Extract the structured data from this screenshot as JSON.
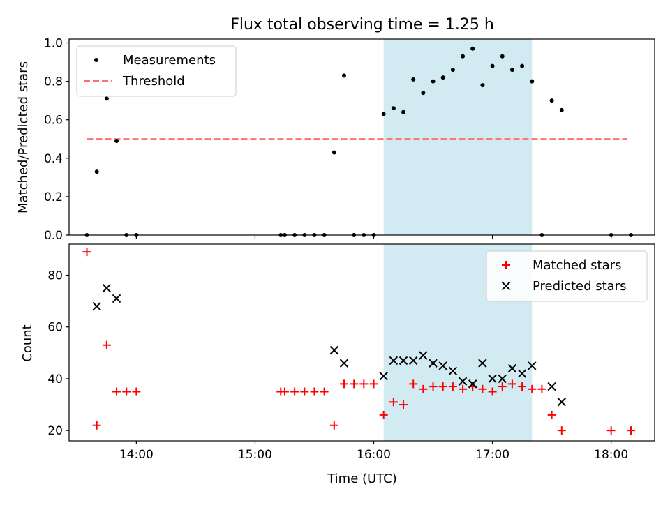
{
  "title": "Flux total observing time = 1.25 h",
  "colors": {
    "measurement": "#000000",
    "threshold": "#ff7070",
    "matched": "#ff0000",
    "predicted": "#000000",
    "observing_window": "#add8e6"
  },
  "chart_data": [
    {
      "type": "scatter",
      "panel": "top",
      "ylabel": "Matched/Predicted stars",
      "xlim": [
        "13:26",
        "18:22"
      ],
      "ylim": [
        0,
        1.02
      ],
      "yticks": [
        0.0,
        0.2,
        0.4,
        0.6,
        0.8,
        1.0
      ],
      "ytick_labels": [
        "0.0",
        "0.2",
        "0.4",
        "0.6",
        "0.8",
        "1.0"
      ],
      "xticks": [
        "14:00",
        "15:00",
        "16:00",
        "17:00",
        "18:00"
      ],
      "grid": false,
      "legend": {
        "placement": "top-left",
        "entries": [
          "Measurements",
          "Threshold"
        ]
      },
      "shaded_region": {
        "x_start": "16:05",
        "x_end": "17:20"
      },
      "threshold": {
        "name": "Threshold",
        "y": 0.5,
        "x_start": "13:35",
        "x_end": "18:08"
      },
      "series": [
        {
          "name": "Measurements",
          "marker": "dot",
          "points": [
            [
              "13:35",
              0.0
            ],
            [
              "13:40",
              0.33
            ],
            [
              "13:45",
              0.71
            ],
            [
              "13:50",
              0.49
            ],
            [
              "13:55",
              0.0
            ],
            [
              "14:00",
              0.0
            ],
            [
              "15:13",
              0.0
            ],
            [
              "15:15",
              0.0
            ],
            [
              "15:20",
              0.0
            ],
            [
              "15:25",
              0.0
            ],
            [
              "15:30",
              0.0
            ],
            [
              "15:35",
              0.0
            ],
            [
              "15:40",
              0.43
            ],
            [
              "15:45",
              0.83
            ],
            [
              "15:50",
              0.0
            ],
            [
              "15:55",
              0.0
            ],
            [
              "16:00",
              0.0
            ],
            [
              "16:05",
              0.63
            ],
            [
              "16:10",
              0.66
            ],
            [
              "16:15",
              0.64
            ],
            [
              "16:20",
              0.81
            ],
            [
              "16:25",
              0.74
            ],
            [
              "16:30",
              0.8
            ],
            [
              "16:35",
              0.82
            ],
            [
              "16:40",
              0.86
            ],
            [
              "16:45",
              0.93
            ],
            [
              "16:50",
              0.97
            ],
            [
              "16:55",
              0.78
            ],
            [
              "17:00",
              0.88
            ],
            [
              "17:05",
              0.93
            ],
            [
              "17:10",
              0.86
            ],
            [
              "17:15",
              0.88
            ],
            [
              "17:20",
              0.8
            ],
            [
              "17:25",
              0.0
            ],
            [
              "17:30",
              0.7
            ],
            [
              "17:35",
              0.65
            ],
            [
              "18:00",
              0.0
            ],
            [
              "18:10",
              0.0
            ]
          ]
        }
      ]
    },
    {
      "type": "scatter",
      "panel": "bottom",
      "xlabel": "Time (UTC)",
      "ylabel": "Count",
      "xlim": [
        "13:26",
        "18:22"
      ],
      "ylim": [
        16,
        92
      ],
      "yticks": [
        20,
        40,
        60,
        80
      ],
      "xticks": [
        "14:00",
        "15:00",
        "16:00",
        "17:00",
        "18:00"
      ],
      "grid": false,
      "legend": {
        "placement": "top-right",
        "entries": [
          "Matched stars",
          "Predicted stars"
        ]
      },
      "shaded_region": {
        "x_start": "16:05",
        "x_end": "17:20"
      },
      "series": [
        {
          "name": "Matched stars",
          "marker": "plus",
          "points": [
            [
              "13:35",
              89
            ],
            [
              "13:40",
              22
            ],
            [
              "13:45",
              53
            ],
            [
              "13:50",
              35
            ],
            [
              "13:55",
              35
            ],
            [
              "14:00",
              35
            ],
            [
              "15:13",
              35
            ],
            [
              "15:15",
              35
            ],
            [
              "15:20",
              35
            ],
            [
              "15:25",
              35
            ],
            [
              "15:30",
              35
            ],
            [
              "15:35",
              35
            ],
            [
              "15:40",
              22
            ],
            [
              "15:45",
              38
            ],
            [
              "15:50",
              38
            ],
            [
              "15:55",
              38
            ],
            [
              "16:00",
              38
            ],
            [
              "16:05",
              26
            ],
            [
              "16:10",
              31
            ],
            [
              "16:15",
              30
            ],
            [
              "16:20",
              38
            ],
            [
              "16:25",
              36
            ],
            [
              "16:30",
              37
            ],
            [
              "16:35",
              37
            ],
            [
              "16:40",
              37
            ],
            [
              "16:45",
              36
            ],
            [
              "16:50",
              37
            ],
            [
              "16:55",
              36
            ],
            [
              "17:00",
              35
            ],
            [
              "17:05",
              37
            ],
            [
              "17:10",
              38
            ],
            [
              "17:15",
              37
            ],
            [
              "17:20",
              36
            ],
            [
              "17:25",
              36
            ],
            [
              "17:30",
              26
            ],
            [
              "17:35",
              20
            ],
            [
              "18:00",
              20
            ],
            [
              "18:10",
              20
            ]
          ]
        },
        {
          "name": "Predicted stars",
          "marker": "x",
          "points": [
            [
              "13:40",
              68
            ],
            [
              "13:45",
              75
            ],
            [
              "13:50",
              71
            ],
            [
              "15:40",
              51
            ],
            [
              "15:45",
              46
            ],
            [
              "16:05",
              41
            ],
            [
              "16:10",
              47
            ],
            [
              "16:15",
              47
            ],
            [
              "16:20",
              47
            ],
            [
              "16:25",
              49
            ],
            [
              "16:30",
              46
            ],
            [
              "16:35",
              45
            ],
            [
              "16:40",
              43
            ],
            [
              "16:45",
              39
            ],
            [
              "16:50",
              38
            ],
            [
              "16:55",
              46
            ],
            [
              "17:00",
              40
            ],
            [
              "17:05",
              40
            ],
            [
              "17:10",
              44
            ],
            [
              "17:15",
              42
            ],
            [
              "17:20",
              45
            ],
            [
              "17:30",
              37
            ],
            [
              "17:35",
              31
            ]
          ]
        }
      ]
    }
  ]
}
